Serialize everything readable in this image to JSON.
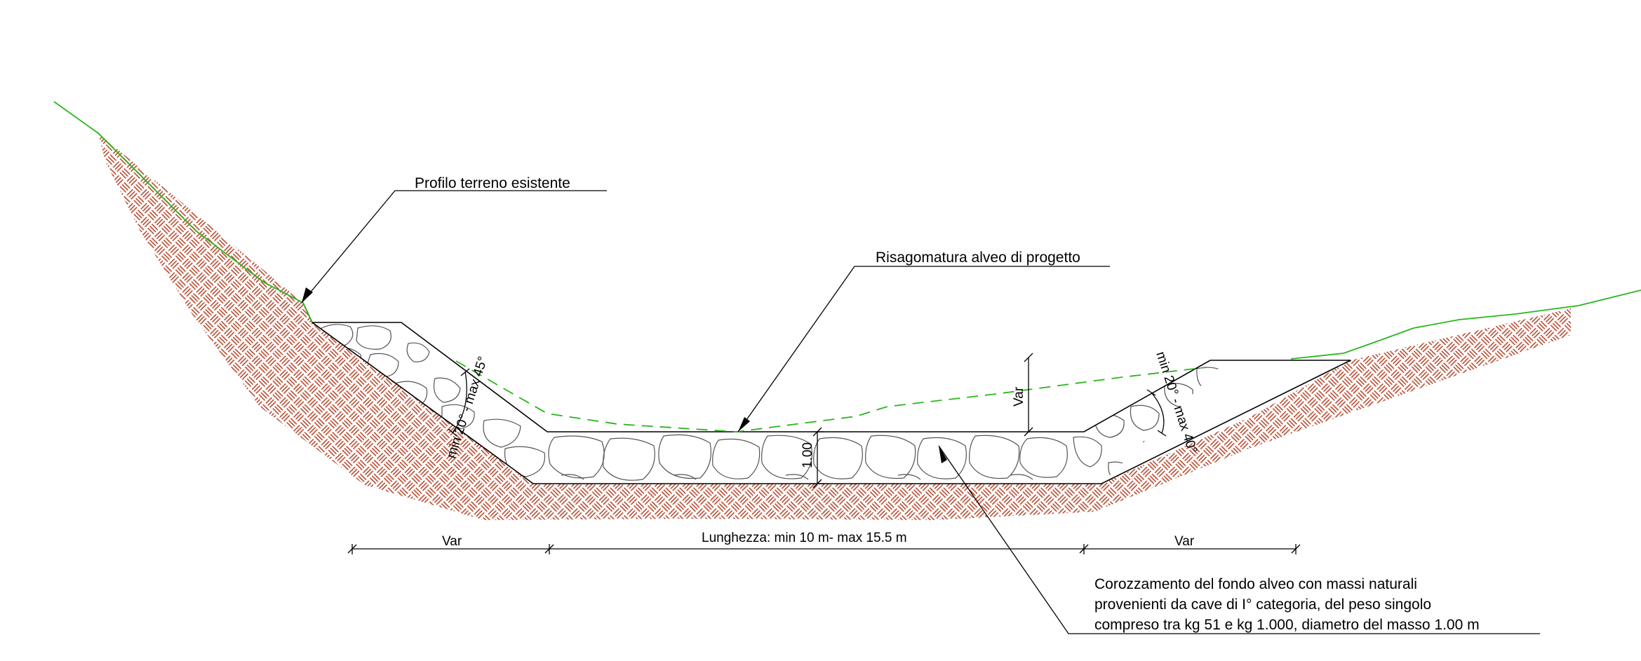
{
  "labels": {
    "existing_ground": "Profilo terreno esistente",
    "design_channel": "Risagomatura alveo di progetto",
    "armoring_line1": "Corozzamento del fondo alveo con massi naturali",
    "armoring_line2": "provenienti da cave di I° categoria, del peso singolo",
    "armoring_line3": "compreso tra kg 51 e kg 1.000, diametro del masso 1.00 m"
  },
  "dimensions": {
    "left_width": "Var",
    "bed_length": "Lunghezza: min 10 m- max 15.5 m",
    "right_width": "Var",
    "thickness": "1.00",
    "depth": "Var",
    "left_angle": "min 20° - max 45°",
    "right_angle": "min 20° - max 40°"
  },
  "colors": {
    "soil_hatch": "#b5482d",
    "ground_line": "#29b61b",
    "design_line": "#29b61b",
    "linework": "#000000",
    "rock_outline": "#555555"
  }
}
